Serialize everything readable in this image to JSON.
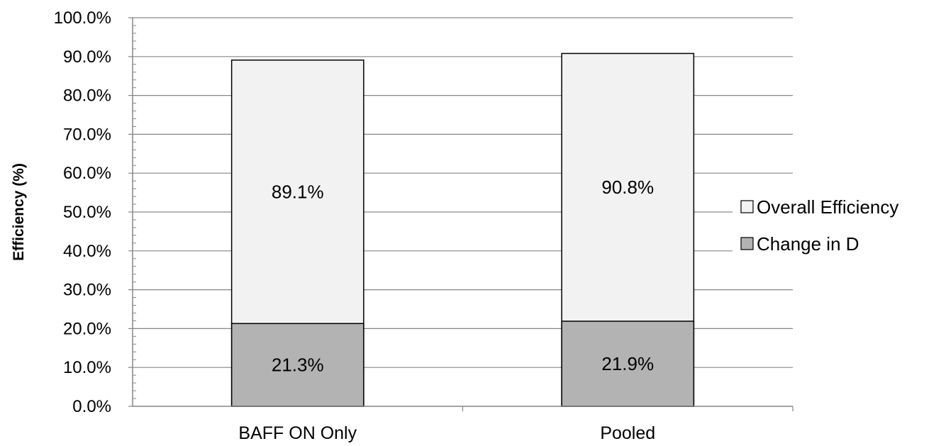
{
  "chart_data": {
    "type": "bar",
    "stacked": false,
    "overlapping": true,
    "categories": [
      "BAFF ON Only",
      "Pooled"
    ],
    "series": [
      {
        "name": "Overall Efficiency",
        "values": [
          89.1,
          90.8
        ],
        "labels": [
          "89.1%",
          "90.8%"
        ],
        "color": "#f2f2f2"
      },
      {
        "name": "Change in D",
        "values": [
          21.3,
          21.9
        ],
        "labels": [
          "21.3%",
          "21.9%"
        ],
        "color": "#b3b3b3"
      }
    ],
    "ylabel": "Efficiency (%)",
    "xlabel": "",
    "ylim": [
      0,
      100
    ],
    "yticks": [
      "0.0%",
      "10.0%",
      "20.0%",
      "30.0%",
      "40.0%",
      "50.0%",
      "60.0%",
      "70.0%",
      "80.0%",
      "90.0%",
      "100.0%"
    ],
    "grid": true,
    "legend_position": "right",
    "colors": {
      "gridline": "#868686",
      "bar_edge": "#000000"
    }
  }
}
